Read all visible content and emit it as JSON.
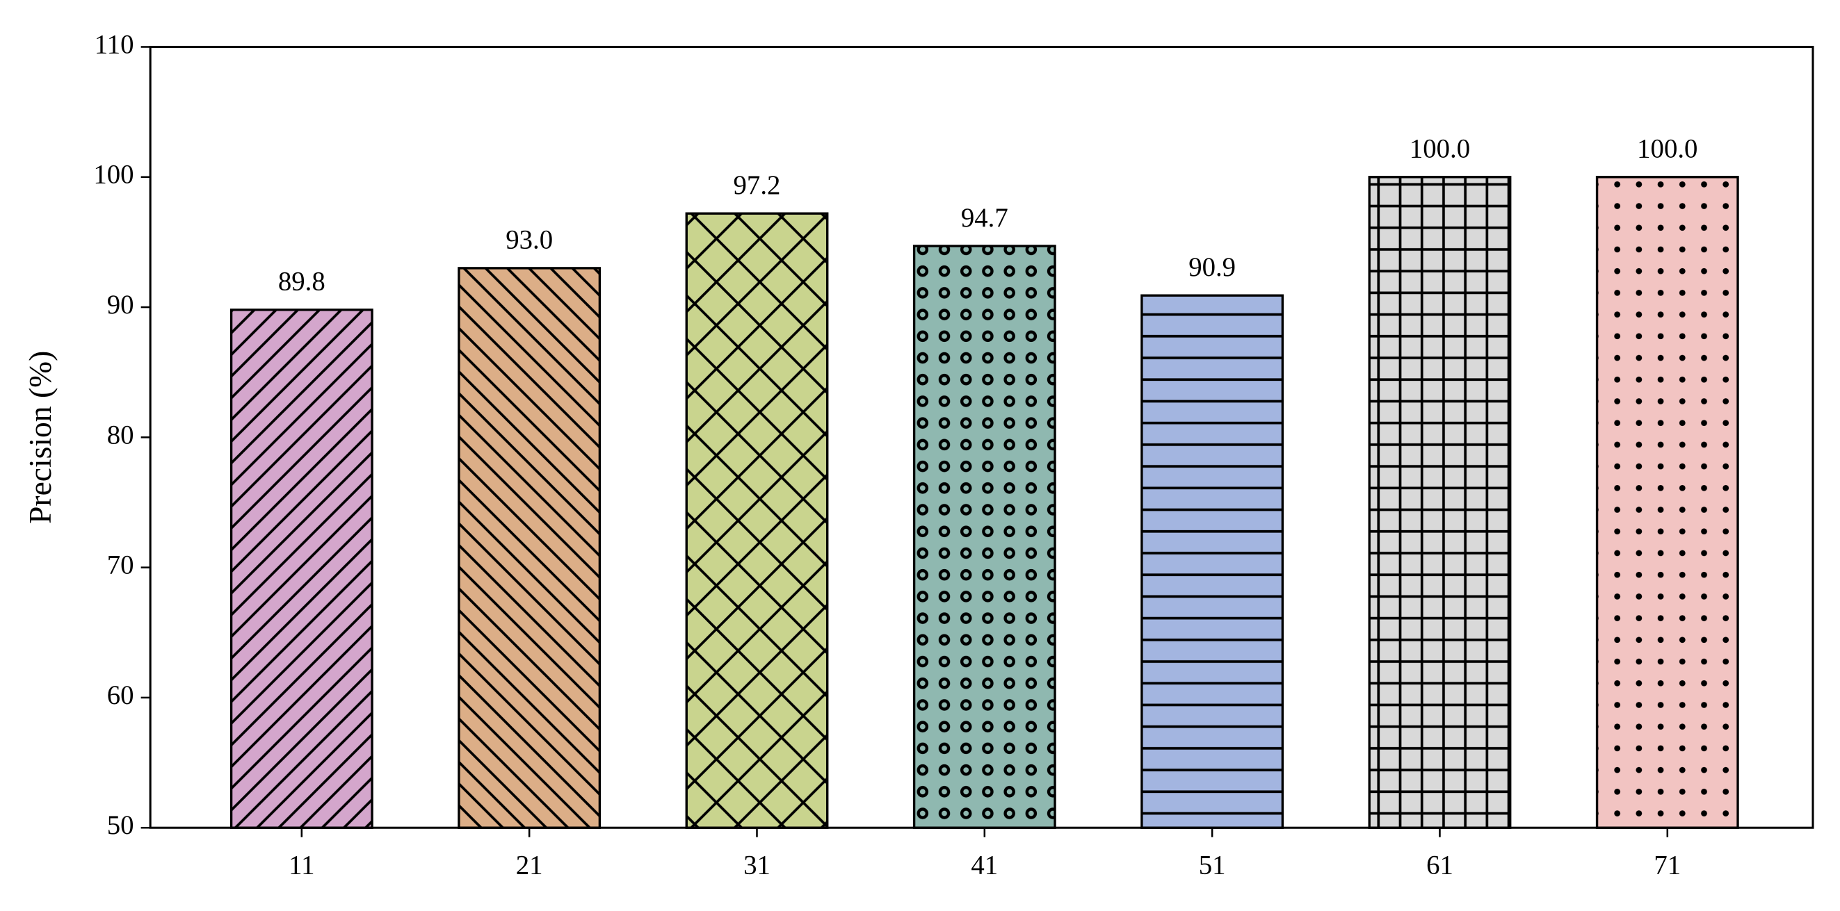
{
  "chart_data": {
    "type": "bar",
    "y_label": "Precision (%)",
    "categories": [
      "11",
      "21",
      "31",
      "41",
      "51",
      "61",
      "71"
    ],
    "values": [
      89.8,
      93.0,
      97.2,
      94.7,
      90.9,
      100.0,
      100.0
    ],
    "value_labels": [
      "89.8",
      "93.0",
      "97.2",
      "94.7",
      "90.9",
      "100.0",
      "100.0"
    ],
    "colors": [
      "#d4a6cc",
      "#dcae87",
      "#c9d48e",
      "#8fb8b0",
      "#a3b5e0",
      "#d9d9d9",
      "#f2c4c2"
    ],
    "hatches": [
      "/",
      "\\",
      "x",
      "o",
      "-",
      "+",
      "."
    ],
    "ylim": [
      50,
      110
    ],
    "yticks": [
      50,
      60,
      70,
      80,
      90,
      100,
      110
    ]
  }
}
